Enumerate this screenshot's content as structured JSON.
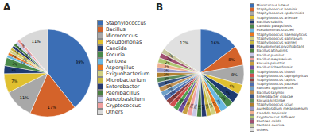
{
  "chart_data": [
    {
      "type": "pie",
      "title": "A",
      "categories": [
        "Staphylococcus",
        "Bacillus",
        "Micrococcus",
        "Pseudomonas",
        "Candida",
        "Kocuria",
        "Pantoea",
        "Aspergillus",
        "Exiguobacterium",
        "Microbacterium",
        "Enterobacter",
        "Paenibacillus",
        "Aureobasidium",
        "Cryptococcus",
        "Others"
      ],
      "values": [
        39,
        17,
        11,
        7,
        3,
        3,
        1,
        1,
        1,
        1,
        1,
        1,
        1,
        1,
        11
      ],
      "value_labels": [
        "39%",
        "17%",
        "11%",
        "7%",
        "3%",
        "3%",
        "1%",
        "1%",
        "1%",
        "1%",
        "1%",
        "1%",
        "1%",
        "1%",
        "11%"
      ],
      "colors": [
        "#3B6EB5",
        "#D4632A",
        "#A8A8A8",
        "#E0C030",
        "#1E3A70",
        "#4A8A4A",
        "#6AB8E0",
        "#E87820",
        "#D0D080",
        "#C8B840",
        "#263870",
        "#4A8040",
        "#C8C8E8",
        "#F0A0A0",
        "#D8D8D8"
      ],
      "data_labels": true,
      "legend": "right"
    },
    {
      "type": "pie",
      "title": "B",
      "categories": [
        "Micrococcus luteus",
        "Staphylococcus hominis",
        "Staphylococcus epidermidis",
        "Staphylococcus arlettae",
        "Bacillus subtilis",
        "Candida parapsilosis",
        "Pseudomonas stutzeri",
        "Staphylococcus haemolyticus",
        "Staphylococcus gallinarum",
        "Staphylococcus warneri",
        "Pseudomonas oryzihabitans",
        "Bacillus altitudinis",
        "Bacillus pumilus",
        "Bacillus megaterium",
        "Kocuria palustris",
        "Bacillus licheniformis",
        "Staphylococcus kloosii",
        "Staphylococcus saprophyticus",
        "Staphylococcus capitis",
        "Staphylococcus pasteuri",
        "Pantoea agglomerans",
        "Bacillus salymoi",
        "Enterobacter cloacae",
        "Kocuria kristinae",
        "Staphylococcus sciuri",
        "Aureobasidium melanogenum",
        "Candida tropicalis",
        "Cryptococcus diffluens",
        "Pantoea calida",
        "Pantoea eucrina",
        "Others"
      ],
      "values": [
        16,
        8,
        8,
        4,
        4,
        3,
        3,
        2,
        2,
        2,
        2,
        2,
        2,
        2,
        2,
        2,
        2,
        2,
        2,
        2,
        2,
        2,
        2,
        2,
        2,
        2,
        2,
        2,
        2,
        2,
        17
      ],
      "value_labels": [
        "16%",
        "8%",
        "8%",
        "4%",
        "4%",
        "3%",
        "3%",
        "2%",
        "2%",
        "2%",
        "2%",
        "2%",
        "2%",
        "2%",
        "2%",
        "2%",
        "2%",
        "2%",
        "2%",
        "2%",
        "2%",
        "2%",
        "2%",
        "2%",
        "2%",
        "2%",
        "2%",
        "2%",
        "2%",
        "2%",
        "17%"
      ],
      "colors": [
        "#3B6EB5",
        "#D4632A",
        "#A8A8A8",
        "#E0C030",
        "#1E3A70",
        "#4A8A4A",
        "#6AB8E0",
        "#E87820",
        "#D0D080",
        "#C8B840",
        "#263870",
        "#4A8040",
        "#C8C8E8",
        "#F0A0A0",
        "#C8A040",
        "#7050A0",
        "#50A050",
        "#D05050",
        "#904040",
        "#5070B0",
        "#70A0C8",
        "#C09050",
        "#3A5888",
        "#5C8C5C",
        "#B08030",
        "#9898C8",
        "#F0B090",
        "#B0C870",
        "#A05070",
        "#C8C8A0",
        "#E0E0E0"
      ],
      "data_labels": true,
      "legend": "right"
    }
  ]
}
